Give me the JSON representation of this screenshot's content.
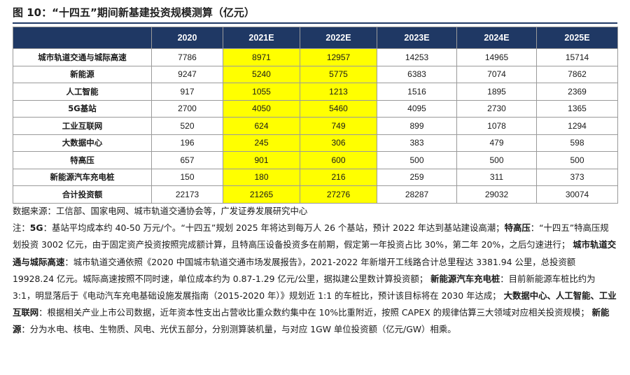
{
  "title": "图 10：“十四五”期间新基建投资规模测算（亿元）",
  "table": {
    "headers": [
      "",
      "2020",
      "2021E",
      "2022E",
      "2023E",
      "2024E",
      "2025E"
    ],
    "rows": [
      {
        "label": "城市轨道交通与城际高速",
        "values": [
          "7786",
          "8971",
          "12957",
          "14253",
          "14965",
          "15714"
        ]
      },
      {
        "label": "新能源",
        "values": [
          "9247",
          "5240",
          "5775",
          "6383",
          "7074",
          "7862"
        ]
      },
      {
        "label": "人工智能",
        "values": [
          "917",
          "1055",
          "1213",
          "1516",
          "1895",
          "2369"
        ]
      },
      {
        "label": "5G基站",
        "values": [
          "2700",
          "4050",
          "5460",
          "4095",
          "2730",
          "1365"
        ]
      },
      {
        "label": "工业互联网",
        "values": [
          "520",
          "624",
          "749",
          "899",
          "1078",
          "1294"
        ]
      },
      {
        "label": "大数据中心",
        "values": [
          "196",
          "245",
          "306",
          "383",
          "479",
          "598"
        ]
      },
      {
        "label": "特高压",
        "values": [
          "657",
          "901",
          "600",
          "500",
          "500",
          "500"
        ]
      },
      {
        "label": "新能源汽车充电桩",
        "values": [
          "150",
          "180",
          "216",
          "259",
          "311",
          "373"
        ]
      },
      {
        "label": "合计投资额",
        "values": [
          "22173",
          "21265",
          "27276",
          "28287",
          "29032",
          "30074"
        ]
      }
    ],
    "highlight_color": "#ffff00",
    "header_color": "#1f3864"
  },
  "footer": {
    "source": "数据来源：工信部、国家电网、城市轨道交通协会等，广发证券发展研究中心",
    "note_parts": [
      {
        "text": "注：",
        "bold": false
      },
      {
        "text": "5G",
        "bold": true
      },
      {
        "text": "：基站平均成本约 40-50 万元/个。“十四五”规划 2025 年将达到每万人 26 个基站，预计 2022 年达到基站建设高潮；",
        "bold": false
      },
      {
        "text": "特高压",
        "bold": true
      },
      {
        "text": "：“十四五”特高压规划投资 3002 亿元，由于固定资产投资按照完成额计算，且特高压设备投资多在前期，假定第一年投资占比 30%，第二年 20%，之后匀速进行； ",
        "bold": false
      },
      {
        "text": "城市轨道交通与城际高速",
        "bold": true
      },
      {
        "text": "：城市轨道交通依照《2020 中国城市轨道交通市场发展报告》，2021-2022 年新增开工线路合计总里程达 3381.94 公里，总投资额 19928.24 亿元。城际高速按照不同时速，单位成本约为 0.87-1.29 亿元/公里，据拟建公里数计算投资额； ",
        "bold": false
      },
      {
        "text": "新能源汽车充电桩",
        "bold": true
      },
      {
        "text": "：目前新能源车桩比约为 3:1，明显落后于《电动汽车充电基础设施发展指南（2015-2020 年）》规划近 1:1 的车桩比，预计该目标将在 2030 年达成； ",
        "bold": false
      },
      {
        "text": "大数据中心、人工智能、工业互联网",
        "bold": true
      },
      {
        "text": "：根据相关产业上市公司数据，近年资本性支出占营收比重众数约集中在 10%比重附近，按照 CAPEX 的规律估算三大领域对应相关投资规模； ",
        "bold": false
      },
      {
        "text": "新能源",
        "bold": true
      },
      {
        "text": "：分为水电、核电、生物质、风电、光伏五部分，分别测算装机量，与对应 1GW 单位投资额（亿元/GW）相乘。",
        "bold": false
      }
    ]
  }
}
